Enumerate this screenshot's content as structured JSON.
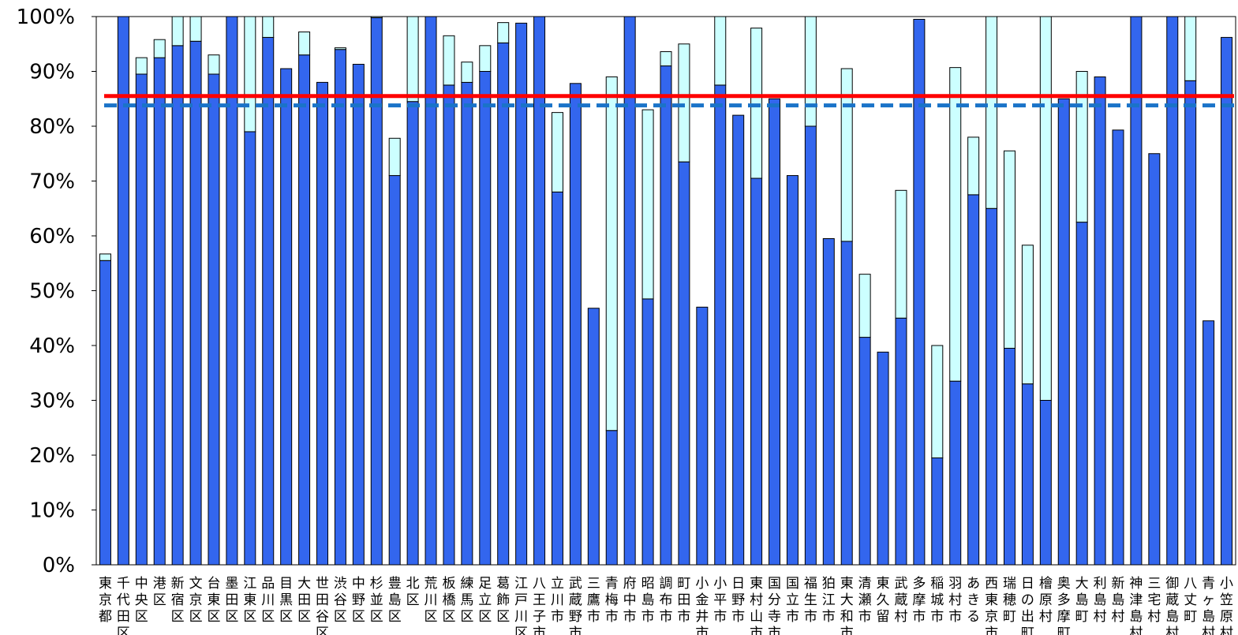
{
  "chart_data": {
    "type": "bar",
    "stacked": true,
    "title": "",
    "xlabel": "",
    "ylabel": "",
    "ylim": [
      0,
      100
    ],
    "yticks": [
      "0%",
      "10%",
      "20%",
      "30%",
      "40%",
      "50%",
      "60%",
      "70%",
      "80%",
      "90%",
      "100%"
    ],
    "grid": false,
    "legend": "none",
    "colors": {
      "base": "#3366ee",
      "extra": "#ccffff",
      "ref_solid": "#ff0000",
      "ref_dashed": "#1a73c8"
    },
    "categories": [
      "東京都",
      "千代田区",
      "中央区",
      "港区",
      "新宿区",
      "文京区",
      "台東区",
      "墨田区",
      "江東区",
      "品川区",
      "目黒区",
      "大田区",
      "世田谷区",
      "渋谷区",
      "中野区",
      "杉並区",
      "豊島区",
      "北区",
      "荒川区",
      "板橋区",
      "練馬区",
      "足立区",
      "葛飾区",
      "江戸川区",
      "八王子市",
      "立川市",
      "武蔵野市",
      "三鷹市",
      "青梅市",
      "府中市",
      "昭島市",
      "調布市",
      "町田市",
      "小金井市",
      "小平市",
      "日野市",
      "東村山市",
      "国分寺市",
      "国立市",
      "福生市",
      "狛江市",
      "東大和市",
      "清瀬市",
      "東久留…",
      "武蔵村…",
      "多摩市",
      "稲城市",
      "羽村市",
      "あきる…",
      "西東京市",
      "瑞穂町",
      "日の出町",
      "檜原村",
      "奥多摩町",
      "大島町",
      "利島村",
      "新島村",
      "神津島村",
      "三宅村",
      "御蔵島村",
      "八丈町",
      "青ヶ島村",
      "小笠原村"
    ],
    "series": [
      {
        "values": [
          55.5,
          100,
          89.5,
          92.5,
          94.7,
          95.5,
          89.5,
          100,
          79,
          96.2,
          90.5,
          93,
          88,
          94,
          91.3,
          99.8,
          71,
          84.5,
          100,
          87.5,
          88,
          90,
          95.2,
          98.8,
          100,
          68,
          87.8,
          46.8,
          24.5,
          100,
          48.5,
          91,
          73.5,
          47,
          87.5,
          82,
          70.5,
          85,
          71,
          80,
          59.5,
          59,
          41.5,
          38.8,
          45,
          99.5,
          19.5,
          33.5,
          67.5,
          65,
          39.5,
          33,
          30,
          85,
          62.5,
          89,
          79.3,
          100,
          75,
          100,
          88.3,
          44.5,
          96.2
        ]
      },
      {
        "values": [
          1.2,
          0,
          3,
          3.3,
          5.3,
          4.5,
          3.5,
          0,
          21,
          3.8,
          0,
          4.2,
          0,
          0.3,
          0,
          0.2,
          6.8,
          15.5,
          0,
          9,
          3.7,
          4.7,
          3.7,
          0,
          0,
          14.5,
          0,
          0,
          64.5,
          0,
          34.5,
          2.6,
          21.5,
          0,
          12.5,
          0,
          27.4,
          0,
          0,
          20,
          0,
          31.5,
          11.5,
          0,
          23.3,
          0,
          20.5,
          57.2,
          10.5,
          35,
          36,
          25.3,
          70,
          0,
          27.5,
          0,
          0,
          0,
          0,
          0,
          11.7,
          0,
          0
        ]
      }
    ],
    "reference_lines": [
      {
        "style": "solid",
        "value": 85.5
      },
      {
        "style": "dashed",
        "value": 83.8
      }
    ]
  }
}
